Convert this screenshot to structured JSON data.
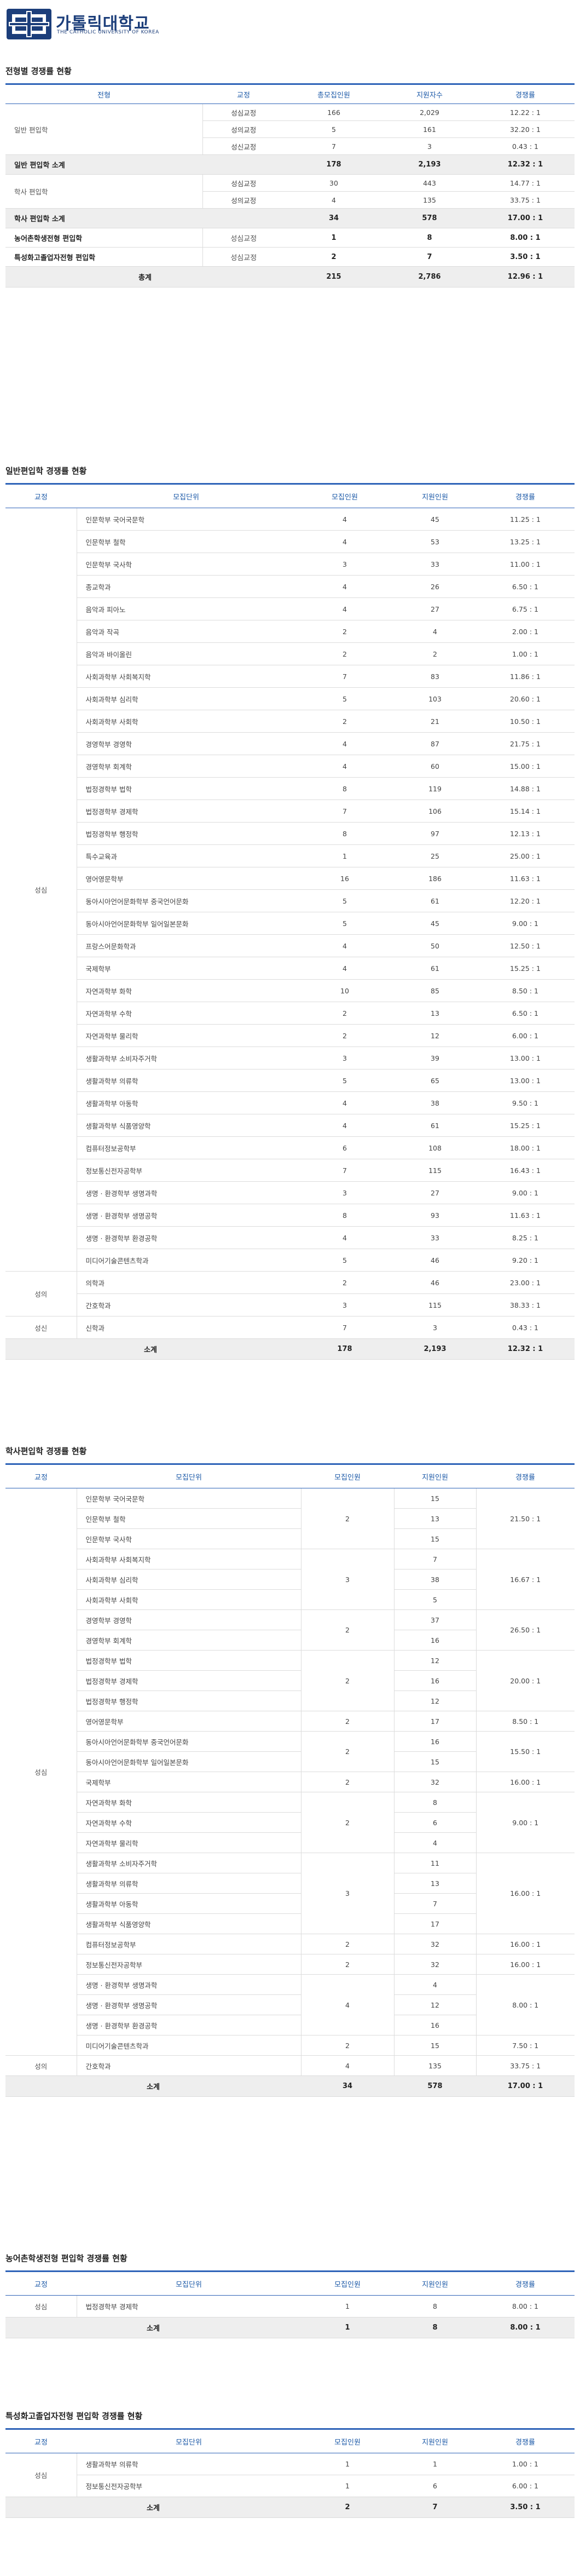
{
  "header": {
    "logo_title": "가톨릭대학교",
    "logo_sub": "THE CATHOLIC UNIVERSITY OF KOREA"
  },
  "summary": {
    "title": "전형별 경쟁률 현황",
    "headers": [
      "전형",
      "교정",
      "총모집인원",
      "지원자수",
      "경쟁률"
    ],
    "general": {
      "label": "일반 편입학",
      "rows": [
        {
          "campus": "성심교정",
          "quota": "166",
          "applicants": "2,029",
          "ratio": "12.22 : 1"
        },
        {
          "campus": "성의교정",
          "quota": "5",
          "applicants": "161",
          "ratio": "32.20 : 1"
        },
        {
          "campus": "성신교정",
          "quota": "7",
          "applicants": "3",
          "ratio": "0.43 : 1"
        }
      ],
      "subtotal": {
        "label": "일반 편입학 소계",
        "quota": "178",
        "applicants": "2,193",
        "ratio": "12.32 : 1"
      }
    },
    "bachelor": {
      "label": "학사 편입학",
      "rows": [
        {
          "campus": "성심교정",
          "quota": "30",
          "applicants": "443",
          "ratio": "14.77 : 1"
        },
        {
          "campus": "성의교정",
          "quota": "4",
          "applicants": "135",
          "ratio": "33.75 : 1"
        }
      ],
      "subtotal": {
        "label": "학사 편입학 소계",
        "quota": "34",
        "applicants": "578",
        "ratio": "17.00 : 1"
      }
    },
    "farm": {
      "label": "농어촌학생전형 편입학",
      "campus": "성심교정",
      "quota": "1",
      "applicants": "8",
      "ratio": "8.00 : 1"
    },
    "special": {
      "label": "특성화고졸업자전형 편입학",
      "campus": "성심교정",
      "quota": "2",
      "applicants": "7",
      "ratio": "3.50 : 1"
    },
    "total": {
      "label": "총계",
      "quota": "215",
      "applicants": "2,786",
      "ratio": "12.96 : 1"
    }
  },
  "general_table": {
    "title": "일반편입학 경쟁률 현황",
    "headers": [
      "교정",
      "모집단위",
      "모집인원",
      "지원인원",
      "경쟁률"
    ],
    "groups": [
      {
        "campus": "성심",
        "rows": [
          [
            "인문학부 국어국문학",
            "4",
            "45",
            "11.25 : 1"
          ],
          [
            "인문학부 철학",
            "4",
            "53",
            "13.25 : 1"
          ],
          [
            "인문학부 국사학",
            "3",
            "33",
            "11.00 : 1"
          ],
          [
            "종교학과",
            "4",
            "26",
            "6.50 : 1"
          ],
          [
            "음악과 피아노",
            "4",
            "27",
            "6.75 : 1"
          ],
          [
            "음악과 작곡",
            "2",
            "4",
            "2.00 : 1"
          ],
          [
            "음악과 바이올린",
            "2",
            "2",
            "1.00 : 1"
          ],
          [
            "사회과학부 사회복지학",
            "7",
            "83",
            "11.86 : 1"
          ],
          [
            "사회과학부 심리학",
            "5",
            "103",
            "20.60 : 1"
          ],
          [
            "사회과학부 사회학",
            "2",
            "21",
            "10.50 : 1"
          ],
          [
            "경영학부 경영학",
            "4",
            "87",
            "21.75 : 1"
          ],
          [
            "경영학부 회계학",
            "4",
            "60",
            "15.00 : 1"
          ],
          [
            "법정경학부 법학",
            "8",
            "119",
            "14.88 : 1"
          ],
          [
            "법정경학부 경제학",
            "7",
            "106",
            "15.14 : 1"
          ],
          [
            "법정경학부 행정학",
            "8",
            "97",
            "12.13 : 1"
          ],
          [
            "특수교육과",
            "1",
            "25",
            "25.00 : 1"
          ],
          [
            "영어영문학부",
            "16",
            "186",
            "11.63 : 1"
          ],
          [
            "동아시아언어문화학부 중국언어문화",
            "5",
            "61",
            "12.20 : 1"
          ],
          [
            "동아시아언어문화학부 일어일본문화",
            "5",
            "45",
            "9.00 : 1"
          ],
          [
            "프랑스어문화학과",
            "4",
            "50",
            "12.50 : 1"
          ],
          [
            "국제학부",
            "4",
            "61",
            "15.25 : 1"
          ],
          [
            "자연과학부 화학",
            "10",
            "85",
            "8.50 : 1"
          ],
          [
            "자연과학부 수학",
            "2",
            "13",
            "6.50 : 1"
          ],
          [
            "자연과학부 물리학",
            "2",
            "12",
            "6.00 : 1"
          ],
          [
            "생활과학부 소비자주거학",
            "3",
            "39",
            "13.00 : 1"
          ],
          [
            "생활과학부 의류학",
            "5",
            "65",
            "13.00 : 1"
          ],
          [
            "생활과학부 아동학",
            "4",
            "38",
            "9.50 : 1"
          ],
          [
            "생활과학부 식품영양학",
            "4",
            "61",
            "15.25 : 1"
          ],
          [
            "컴퓨터정보공학부",
            "6",
            "108",
            "18.00 : 1"
          ],
          [
            "정보통신전자공학부",
            "7",
            "115",
            "16.43 : 1"
          ],
          [
            "생명 · 환경학부 생명과학",
            "3",
            "27",
            "9.00 : 1"
          ],
          [
            "생명 · 환경학부 생명공학",
            "8",
            "93",
            "11.63 : 1"
          ],
          [
            "생명 · 환경학부 환경공학",
            "4",
            "33",
            "8.25 : 1"
          ],
          [
            "미디어기술콘텐츠학과",
            "5",
            "46",
            "9.20 : 1"
          ]
        ]
      },
      {
        "campus": "성의",
        "rows": [
          [
            "의학과",
            "2",
            "46",
            "23.00 : 1"
          ],
          [
            "간호학과",
            "3",
            "115",
            "38.33 : 1"
          ]
        ]
      },
      {
        "campus": "성신",
        "rows": [
          [
            "신학과",
            "7",
            "3",
            "0.43 : 1"
          ]
        ]
      }
    ],
    "total": {
      "label": "소계",
      "quota": "178",
      "applicants": "2,193",
      "ratio": "12.32 : 1"
    }
  },
  "bachelor_table": {
    "title": "학사편입학 경쟁률 현황",
    "headers": [
      "교정",
      "모집단위",
      "모집인원",
      "지원인원",
      "경쟁률"
    ],
    "groups": [
      {
        "campus": "성심",
        "blocks": [
          {
            "units": [
              [
                "인문학부 국어국문학",
                "15"
              ],
              [
                "인문학부 철학",
                "13"
              ],
              [
                "인문학부 국사학",
                "15"
              ]
            ],
            "quota": "2",
            "ratio": "21.50 : 1"
          },
          {
            "units": [
              [
                "사회과학부 사회복지학",
                "7"
              ],
              [
                "사회과학부 심리학",
                "38"
              ],
              [
                "사회과학부 사회학",
                "5"
              ]
            ],
            "quota": "3",
            "ratio": "16.67 : 1"
          },
          {
            "units": [
              [
                "경영학부 경영학",
                "37"
              ],
              [
                "경영학부 회계학",
                "16"
              ]
            ],
            "quota": "2",
            "ratio": "26.50 : 1"
          },
          {
            "units": [
              [
                "법정경학부 법학",
                "12"
              ],
              [
                "법정경학부 경제학",
                "16"
              ],
              [
                "법정경학부 행정학",
                "12"
              ]
            ],
            "quota": "2",
            "ratio": "20.00 : 1"
          },
          {
            "units": [
              [
                "영어영문학부",
                "17"
              ]
            ],
            "quota": "2",
            "ratio": "8.50 : 1"
          },
          {
            "units": [
              [
                "동아시아언어문화학부 중국언어문화",
                "16"
              ],
              [
                "동아시아언어문화학부 일어일본문화",
                "15"
              ]
            ],
            "quota": "2",
            "ratio": "15.50 : 1"
          },
          {
            "units": [
              [
                "국제학부",
                "32"
              ]
            ],
            "quota": "2",
            "ratio": "16.00 : 1"
          },
          {
            "units": [
              [
                "자연과학부 화학",
                "8"
              ],
              [
                "자연과학부 수학",
                "6"
              ],
              [
                "자연과학부 물리학",
                "4"
              ]
            ],
            "quota": "2",
            "ratio": "9.00 : 1"
          },
          {
            "units": [
              [
                "생활과학부 소비자주거학",
                "11"
              ],
              [
                "생활과학부 의류학",
                "13"
              ],
              [
                "생활과학부 아동학",
                "7"
              ],
              [
                "생활과학부 식품영양학",
                "17"
              ]
            ],
            "quota": "3",
            "ratio": "16.00 : 1"
          },
          {
            "units": [
              [
                "컴퓨터정보공학부",
                "32"
              ]
            ],
            "quota": "2",
            "ratio": "16.00 : 1"
          },
          {
            "units": [
              [
                "정보통신전자공학부",
                "32"
              ]
            ],
            "quota": "2",
            "ratio": "16.00 : 1"
          },
          {
            "units": [
              [
                "생명 · 환경학부 생명과학",
                "4"
              ],
              [
                "생명 · 환경학부 생명공학",
                "12"
              ],
              [
                "생명 · 환경학부 환경공학",
                "16"
              ]
            ],
            "quota": "4",
            "ratio": "8.00 : 1"
          },
          {
            "units": [
              [
                "미디어기술콘텐츠학과",
                "15"
              ]
            ],
            "quota": "2",
            "ratio": "7.50 : 1"
          }
        ]
      },
      {
        "campus": "성의",
        "blocks": [
          {
            "units": [
              [
                "간호학과",
                "135"
              ]
            ],
            "quota": "4",
            "ratio": "33.75 : 1"
          }
        ]
      }
    ],
    "total": {
      "label": "소계",
      "quota": "34",
      "applicants": "578",
      "ratio": "17.00 : 1"
    }
  },
  "farm_table": {
    "title": "농어촌학생전형 편입학 경쟁률 현황",
    "headers": [
      "교정",
      "모집단위",
      "모집인원",
      "지원인원",
      "경쟁률"
    ],
    "groups": [
      {
        "campus": "성심",
        "rows": [
          [
            "법정경학부 경제학",
            "1",
            "8",
            "8.00 : 1"
          ]
        ]
      }
    ],
    "total": {
      "label": "소계",
      "quota": "1",
      "applicants": "8",
      "ratio": "8.00 : 1"
    }
  },
  "special_table": {
    "title": "특성화고졸업자전형 편입학 경쟁률 현황",
    "headers": [
      "교정",
      "모집단위",
      "모집인원",
      "지원인원",
      "경쟁률"
    ],
    "groups": [
      {
        "campus": "성심",
        "rows": [
          [
            "생활과학부 의류학",
            "1",
            "1",
            "1.00 : 1"
          ],
          [
            "정보통신전자공학부",
            "1",
            "6",
            "6.00 : 1"
          ]
        ]
      }
    ],
    "total": {
      "label": "소계",
      "quota": "2",
      "applicants": "7",
      "ratio": "3.50 : 1"
    }
  }
}
